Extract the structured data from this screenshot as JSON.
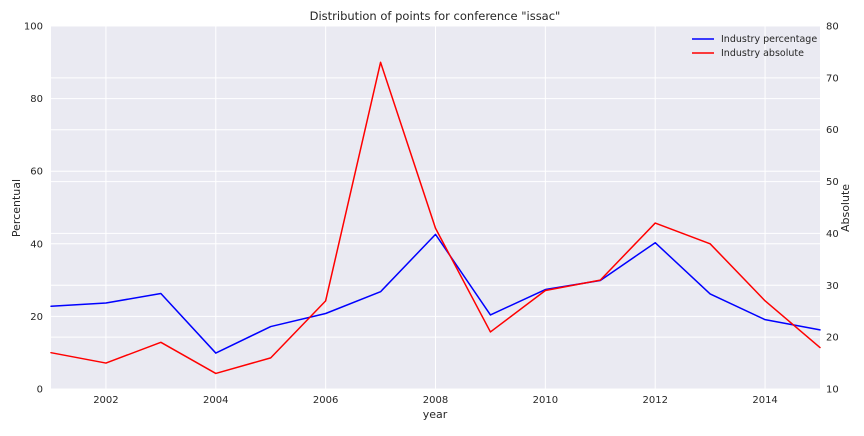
{
  "chart_data": {
    "type": "line",
    "title": "Distribution of points for conference \"issac\"",
    "xlabel": "year",
    "ylabel_left": "Percentual",
    "ylabel_right": "Absolute",
    "x": [
      2001,
      2002,
      2003,
      2004,
      2005,
      2006,
      2007,
      2008,
      2009,
      2010,
      2011,
      2012,
      2013,
      2014,
      2015
    ],
    "xlim": [
      2001,
      2015
    ],
    "xticks": [
      2002,
      2004,
      2006,
      2008,
      2010,
      2012,
      2014
    ],
    "ylim_left": [
      0,
      100
    ],
    "yticks_left": [
      0,
      20,
      40,
      60,
      80,
      100
    ],
    "ylim_right": [
      10,
      80
    ],
    "yticks_right": [
      10,
      20,
      30,
      40,
      50,
      60,
      70,
      80
    ],
    "grid": true,
    "legend_position": "top-right",
    "series": [
      {
        "name": "Industry percentage",
        "axis": "left",
        "color": "#0000ff",
        "values": [
          22.8,
          23.7,
          26.3,
          9.9,
          17.2,
          20.8,
          26.8,
          42.6,
          20.4,
          27.4,
          29.9,
          40.3,
          26.2,
          19.1,
          16.3
        ]
      },
      {
        "name": "Industry absolute",
        "axis": "right",
        "color": "#ff0000",
        "values": [
          17,
          15,
          19,
          13,
          16,
          27,
          73,
          41,
          21,
          29,
          31,
          42,
          38,
          27,
          18
        ]
      }
    ]
  }
}
